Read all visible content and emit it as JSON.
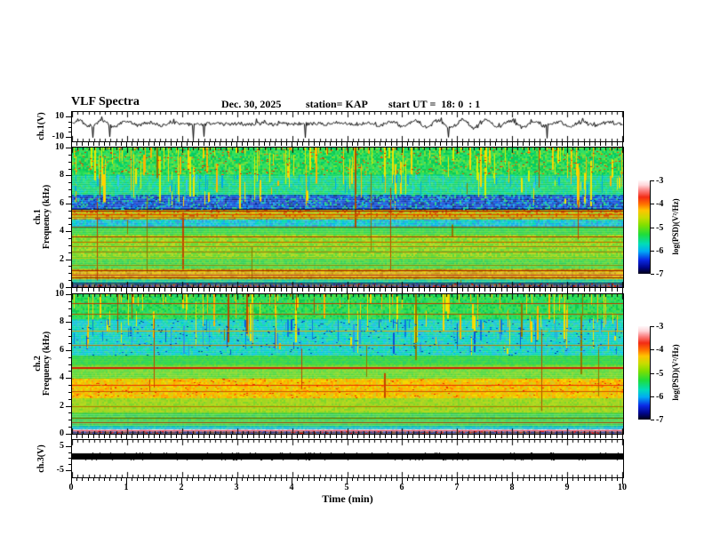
{
  "header": {
    "title": "VLF Spectra",
    "date": "Dec. 30, 2025",
    "station": "station= KAP",
    "start_ut": "start UT =  18: 0  : 1"
  },
  "axes": {
    "time_label": "Time (min)",
    "time_ticks": [
      "0",
      "1",
      "2",
      "3",
      "4",
      "5",
      "6",
      "7",
      "8",
      "9",
      "10"
    ],
    "freq_tick_values": [
      0,
      2,
      4,
      6,
      8,
      10
    ],
    "freq_minor_step": 0.5
  },
  "colorbar": {
    "label": "log(PSD)(V²/Hz)",
    "ticks": [
      "-3",
      "-4",
      "-5",
      "-6",
      "-7"
    ],
    "gradient": [
      [
        "0%",
        "#000014"
      ],
      [
        "7%",
        "#00068e"
      ],
      [
        "15%",
        "#0a2ae6"
      ],
      [
        "24%",
        "#00aaf5"
      ],
      [
        "32%",
        "#00dcb9"
      ],
      [
        "42%",
        "#1edd3c"
      ],
      [
        "52%",
        "#7fdf00"
      ],
      [
        "60%",
        "#c8dc00"
      ],
      [
        "68%",
        "#ffc400"
      ],
      [
        "75%",
        "#ff6c00"
      ],
      [
        "82%",
        "#f32c14"
      ],
      [
        "89%",
        "#fb7f7f"
      ],
      [
        "95%",
        "#ffd6da"
      ],
      [
        "100%",
        "#fff7f9"
      ]
    ]
  },
  "panels": {
    "ch1_wave": {
      "label": "ch.1(V)",
      "ylim": [
        -14,
        14
      ],
      "major_ticks": [
        10,
        -10
      ],
      "minor_ticks": [
        5,
        0,
        -5
      ],
      "wave": {
        "seed": 7,
        "mean": 3,
        "osc": 2.6,
        "period": 27,
        "noise": 1.7,
        "spike_prob": 0.012,
        "spike": -9
      }
    },
    "ch1_spec": {
      "label_line1": "ch.1",
      "label_line2": "Frequency (kHz)",
      "spec": {
        "seed": 21,
        "bands": [
          {
            "f": [
              8.05,
              10
            ],
            "colors": [
              "#1fd956",
              "#2ee060",
              "#49e24c",
              "#12c94f",
              "#35dd6e",
              "#7ade38",
              "#00cf6e"
            ]
          },
          {
            "f": [
              6.6,
              8.05
            ],
            "colors": [
              "#12d477",
              "#00d9a0",
              "#23cf63",
              "#00c9c4",
              "#2adf71",
              "#00ce8f",
              "#19dd55"
            ]
          },
          {
            "f": [
              5.55,
              6.6
            ],
            "colors": [
              "#0a36c0",
              "#0c51dd",
              "#082a86",
              "#2b4bd0",
              "#0b9ae0",
              "#1242cc",
              "#16cf7a",
              "#0a64e0"
            ]
          },
          {
            "f": [
              4.85,
              5.55
            ],
            "colors": [
              "#c2bb00",
              "#d79a00",
              "#b4c81e",
              "#cc5500",
              "#96c428",
              "#e0b400"
            ]
          },
          {
            "f": [
              4.25,
              4.85
            ],
            "colors": [
              "#00b7e8",
              "#12cfc4",
              "#2a9ad8",
              "#00dca8",
              "#31c8e0",
              "#28d0b0"
            ]
          },
          {
            "f": [
              3.75,
              4.25
            ],
            "colors": [
              "#2fd84a",
              "#52da38",
              "#33cc55",
              "#45d542"
            ]
          },
          {
            "f": [
              2.15,
              3.75
            ],
            "colors": [
              "#84d820",
              "#a2da1f",
              "#5cd731",
              "#b9d81a",
              "#72d52a"
            ]
          },
          {
            "f": [
              1.3,
              2.15
            ],
            "colors": [
              "#3ed648",
              "#55d83d",
              "#2fcf52",
              "#68d733"
            ]
          },
          {
            "f": [
              0.55,
              1.3
            ],
            "colors": [
              "#d3a800",
              "#e7c400",
              "#c08a00",
              "#dcb81a",
              "#caa512"
            ]
          },
          {
            "f": [
              0.22,
              0.55
            ],
            "colors": [
              "#27c98b",
              "#00c7a8",
              "#38cf7c",
              "#14bfa0"
            ]
          },
          {
            "f": [
              0,
              0.22
            ],
            "colors": [
              "#3a3f8e",
              "#5c5470",
              "#8a4040",
              "#28275c",
              "#7a6a50"
            ]
          }
        ],
        "vstreaks": [
          {
            "f": [
              5.6,
              10
            ],
            "n": 150,
            "colors": [
              "#f2e500",
              "#ffd400",
              "#d8ef00",
              "#ffb400"
            ]
          },
          {
            "f": [
              6.6,
              8.05
            ],
            "n": 60,
            "colors": [
              "#00a8e8",
              "#33c4f0",
              "#0faadd"
            ]
          },
          {
            "f": [
              0,
              10
            ],
            "n": 16,
            "colors": [
              "#b05000",
              "#907800",
              "#c04400"
            ]
          }
        ],
        "hlines": [
          {
            "f": 5.62,
            "c": "#001050"
          },
          {
            "f": 5.45,
            "c": "#a01800"
          },
          {
            "f": 5.25,
            "c": "#e04800"
          },
          {
            "f": 5.05,
            "c": "#b07800"
          },
          {
            "f": 4.32,
            "c": "#7a3e00"
          },
          {
            "f": 3.62,
            "c": "#c03000"
          },
          {
            "f": 3.28,
            "c": "#cc6600"
          },
          {
            "f": 2.92,
            "c": "#aa7700"
          },
          {
            "f": 2.55,
            "c": "#887700"
          },
          {
            "f": 2.1,
            "c": "#b9c400"
          },
          {
            "f": 1.62,
            "c": "#8a8a00"
          },
          {
            "f": 1.18,
            "c": "#a02200"
          },
          {
            "f": 0.92,
            "c": "#c23000"
          },
          {
            "f": 0.68,
            "c": "#903300"
          },
          {
            "f": 0.3,
            "c": "#203070"
          }
        ],
        "speckles": [
          {
            "f": [
              8.05,
              10
            ],
            "n": 350,
            "colors": [
              "#e03000",
              "#ff5500"
            ]
          },
          {
            "f": [
              5.55,
              6.6
            ],
            "n": 320,
            "colors": [
              "#0a77ff",
              "#00c0ff",
              "#0040aa"
            ]
          },
          {
            "f": [
              0,
              0.25
            ],
            "n": 160,
            "colors": [
              "#cc2200",
              "#3344aa"
            ]
          }
        ]
      }
    },
    "ch2_spec": {
      "label_line1": "ch.2",
      "label_line2": "Frequency (kHz)",
      "spec": {
        "seed": 33,
        "bands": [
          {
            "f": [
              8.2,
              10
            ],
            "colors": [
              "#1fd956",
              "#2ee060",
              "#12c94f",
              "#43e04c",
              "#27d977",
              "#5bdc3f"
            ]
          },
          {
            "f": [
              5.6,
              8.2
            ],
            "colors": [
              "#00d2b4",
              "#09c9d2",
              "#00dca0",
              "#23cfc0",
              "#19b9e0",
              "#2cd98c",
              "#00ccd8"
            ]
          },
          {
            "f": [
              4.95,
              5.6
            ],
            "colors": [
              "#2fd84a",
              "#47da3c",
              "#28cf5e",
              "#3bd54b"
            ]
          },
          {
            "f": [
              3.95,
              4.95
            ],
            "colors": [
              "#64d82e",
              "#86da22",
              "#4cd83a",
              "#74d72c"
            ]
          },
          {
            "f": [
              2.55,
              3.95
            ],
            "colors": [
              "#f0c400",
              "#ffb400",
              "#e0d200",
              "#ffa000",
              "#d8c81e",
              "#f5d800"
            ]
          },
          {
            "f": [
              1.5,
              2.55
            ],
            "colors": [
              "#9ed81f",
              "#b4da1c",
              "#7ed628",
              "#a8d325"
            ]
          },
          {
            "f": [
              0.55,
              1.5
            ],
            "colors": [
              "#38d048",
              "#2cc95a",
              "#4fd83a",
              "#41ce4e"
            ]
          },
          {
            "f": [
              0.32,
              0.55
            ],
            "colors": [
              "#00bcd0",
              "#2fc9b4",
              "#19b4dc"
            ]
          },
          {
            "f": [
              0.16,
              0.32
            ],
            "colors": [
              "#ffd2e0",
              "#ffecf0",
              "#f0b4c8"
            ]
          },
          {
            "f": [
              0,
              0.16
            ],
            "colors": [
              "#32408e",
              "#6e3c50",
              "#283070",
              "#724a36"
            ]
          }
        ],
        "vstreaks": [
          {
            "f": [
              5.6,
              10
            ],
            "n": 110,
            "colors": [
              "#f2e500",
              "#ffd400",
              "#ffb400"
            ]
          },
          {
            "f": [
              5.6,
              8.2
            ],
            "n": 70,
            "colors": [
              "#0a50d8",
              "#0a78e0",
              "#2a9ae8"
            ]
          },
          {
            "f": [
              0,
              10
            ],
            "n": 20,
            "colors": [
              "#b05000",
              "#c04400",
              "#907800"
            ]
          }
        ],
        "hlines": [
          {
            "f": 9.35,
            "c": "#c03000"
          },
          {
            "f": 8.6,
            "c": "#b05000"
          },
          {
            "f": 7.4,
            "c": "#c8a000"
          },
          {
            "f": 6.4,
            "c": "#b07000"
          },
          {
            "f": 4.78,
            "c": "#d02000",
            "t": 2
          },
          {
            "f": 3.5,
            "c": "#e83000"
          },
          {
            "f": 3.06,
            "c": "#cc5500"
          },
          {
            "f": 2.0,
            "c": "#b07800"
          },
          {
            "f": 1.12,
            "c": "#8a6a00"
          },
          {
            "f": 0.8,
            "c": "#a04400"
          },
          {
            "f": 0.24,
            "c": "#e86070"
          }
        ],
        "speckles": [
          {
            "f": [
              5.6,
              8.2
            ],
            "n": 420,
            "colors": [
              "#0a50d8",
              "#00c0ff",
              "#0040aa"
            ]
          },
          {
            "f": [
              2.55,
              3.95
            ],
            "n": 220,
            "colors": [
              "#ff6600",
              "#e83000"
            ]
          },
          {
            "f": [
              0,
              0.16
            ],
            "n": 130,
            "colors": [
              "#e02020",
              "#4455cc"
            ]
          }
        ]
      }
    },
    "ch3_wave": {
      "label": "ch.3(V)",
      "ylim": [
        -8,
        7.5
      ],
      "major_ticks": [
        5,
        -5
      ],
      "minor_ticks": [
        2.5,
        0,
        -2.5
      ],
      "bar": {
        "seed": 11,
        "v_top": 2.1,
        "v_bot": -0.6
      }
    }
  },
  "chart_data": [
    {
      "type": "line",
      "title": "ch.1(V)",
      "xlabel": "Time (min)",
      "ylabel": "ch.1(V)",
      "xlim": [
        0,
        10
      ],
      "ylim": [
        -10,
        10
      ],
      "summary": "Noisy channel-1 voltage envelope, mean about +3 V, quasi-periodic bursts every ~0.5 min spanning about -2 to +8 V, occasional narrow negative spikes reaching about -8 V"
    },
    {
      "type": "heatmap",
      "title": "ch.1 spectrogram",
      "xlabel": "Time (min)",
      "ylabel": "Frequency (kHz)",
      "xlim": [
        0,
        10
      ],
      "ylim": [
        0,
        10
      ],
      "colorbar_label": "log(PSD)(V²/Hz)",
      "zlim": [
        -7,
        -3
      ],
      "bands": [
        {
          "f_khz": [
            8,
            10
          ],
          "log_psd": -5.0
        },
        {
          "f_khz": [
            6.6,
            8
          ],
          "log_psd": -5.3
        },
        {
          "f_khz": [
            5.6,
            6.6
          ],
          "log_psd": -6.3
        },
        {
          "f_khz": [
            4.9,
            5.6
          ],
          "log_psd": -4.5
        },
        {
          "f_khz": [
            4.3,
            4.9
          ],
          "log_psd": -5.6
        },
        {
          "f_khz": [
            2.2,
            4.3
          ],
          "log_psd": -4.8
        },
        {
          "f_khz": [
            1.3,
            2.2
          ],
          "log_psd": -5.0
        },
        {
          "f_khz": [
            0.6,
            1.3
          ],
          "log_psd": -4.4
        },
        {
          "f_khz": [
            0,
            0.6
          ],
          "log_psd": -5.8
        }
      ],
      "narrowband_lines_khz": [
        5.4,
        5.2,
        5.0,
        3.6,
        3.3,
        2.9,
        2.5,
        2.1,
        1.2,
        0.9,
        0.7
      ],
      "impulsive_features": "dense yellow/orange vertical sferic streaks above ~5.6 kHz across all 10 min"
    },
    {
      "type": "heatmap",
      "title": "ch.2 spectrogram",
      "xlabel": "Time (min)",
      "ylabel": "Frequency (kHz)",
      "xlim": [
        0,
        10
      ],
      "ylim": [
        0,
        10
      ],
      "colorbar_label": "log(PSD)(V²/Hz)",
      "zlim": [
        -7,
        -3
      ],
      "bands": [
        {
          "f_khz": [
            8.2,
            10
          ],
          "log_psd": -5.0
        },
        {
          "f_khz": [
            5.6,
            8.2
          ],
          "log_psd": -5.6
        },
        {
          "f_khz": [
            4,
            5.6
          ],
          "log_psd": -4.9
        },
        {
          "f_khz": [
            2.6,
            4
          ],
          "log_psd": -4.3
        },
        {
          "f_khz": [
            1.5,
            2.6
          ],
          "log_psd": -4.7
        },
        {
          "f_khz": [
            0.5,
            1.5
          ],
          "log_psd": -5.0
        },
        {
          "f_khz": [
            0,
            0.5
          ],
          "log_psd": -5.9
        }
      ],
      "narrowband_lines_khz": [
        9.3,
        8.6,
        4.8,
        3.5,
        3.0,
        2.0,
        1.1,
        0.8,
        0.2
      ],
      "impulsive_features": "yellow vertical sferic streaks above ~5.6 kHz; bright orange band 2.6-4 kHz; pale pink stripe near 0.2 kHz"
    },
    {
      "type": "line",
      "title": "ch.3(V)",
      "xlabel": "Time (min)",
      "ylabel": "ch.3(V)",
      "xlim": [
        0,
        10
      ],
      "ylim": [
        -5,
        5
      ],
      "summary": "Flat saturated solid black band from about 0 to +2 V across the entire 10 minutes"
    }
  ]
}
